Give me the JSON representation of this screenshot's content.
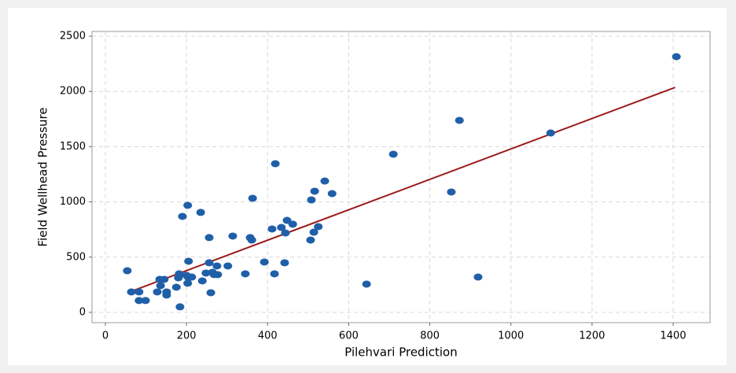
{
  "chart_data": {
    "type": "scatter",
    "xlabel": "Pilehvari Prediction",
    "ylabel": "Field Wellhead Pressure",
    "xlim": [
      -33,
      1491
    ],
    "ylim": [
      -93,
      2543
    ],
    "xticks": [
      0,
      200,
      400,
      600,
      800,
      1000,
      1200,
      1400
    ],
    "yticks": [
      0,
      500,
      1000,
      1500,
      2000,
      2500
    ],
    "grid": true,
    "color": "#1f5fa8",
    "line_color": "#9b1c1c",
    "trend": {
      "x": [
        70,
        1405
      ],
      "y": [
        199,
        2037
      ]
    },
    "x": [
      54,
      64,
      83,
      83,
      99,
      128,
      134,
      136,
      145,
      151,
      151,
      175,
      180,
      182,
      184,
      190,
      203,
      200,
      203,
      205,
      205,
      213,
      235,
      239,
      248,
      256,
      256,
      260,
      264,
      268,
      275,
      277,
      302,
      314,
      345,
      357,
      361,
      363,
      392,
      411,
      417,
      419,
      434,
      442,
      444,
      448,
      462,
      506,
      508,
      516,
      514,
      525,
      541,
      559,
      644,
      710,
      853,
      873,
      919,
      1098,
      1408
    ],
    "y": [
      377,
      185,
      185,
      107,
      107,
      185,
      299,
      242,
      299,
      185,
      157,
      228,
      313,
      349,
      50,
      869,
      969,
      335,
      264,
      313,
      463,
      320,
      905,
      285,
      356,
      677,
      449,
      178,
      363,
      342,
      420,
      342,
      420,
      691,
      349,
      677,
      655,
      1033,
      456,
      755,
      349,
      1346,
      769,
      449,
      719,
      833,
      798,
      655,
      1018,
      1097,
      726,
      776,
      1189,
      1075,
      256,
      1432,
      1090,
      1738,
      320,
      1624,
      2315
    ]
  }
}
